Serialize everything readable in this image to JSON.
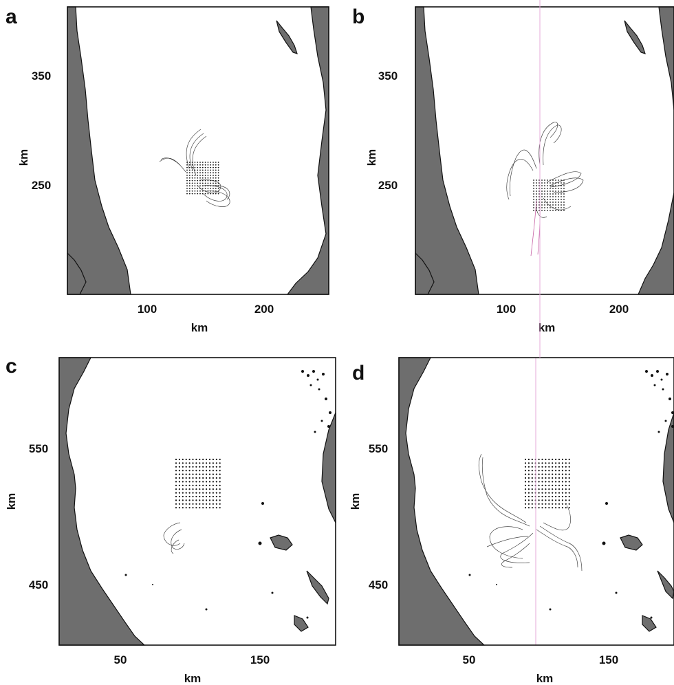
{
  "panels": [
    {
      "letter": "a",
      "x_ticks": [
        "100",
        "200"
      ],
      "y_ticks": [
        "350",
        "250"
      ],
      "x_label": "km",
      "y_label": "km"
    },
    {
      "letter": "b",
      "x_ticks": [
        "100",
        "200"
      ],
      "y_ticks": [
        "350",
        "250"
      ],
      "x_label": "km",
      "y_label": "km"
    },
    {
      "letter": "c",
      "x_ticks": [
        "50",
        "150"
      ],
      "y_ticks": [
        "550",
        "450"
      ],
      "x_label": "km",
      "y_label": "km"
    },
    {
      "letter": "d",
      "x_ticks": [
        "50",
        "150"
      ],
      "y_ticks": [
        "550",
        "450"
      ],
      "x_label": "km",
      "y_label": "km"
    }
  ],
  "colors": {
    "land": "#6e6e6e",
    "water": "#ffffff",
    "tracks": "#222222",
    "highlight_track": "#c0509a"
  }
}
